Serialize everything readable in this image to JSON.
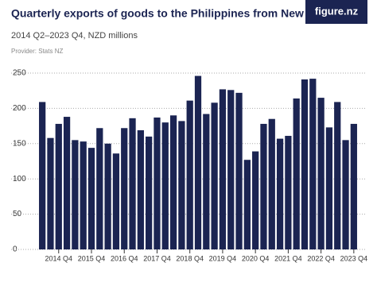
{
  "chart_data": {
    "type": "bar",
    "title": "Quarterly exports of goods to the Philippines from New Zealand",
    "subtitle": "2014 Q2–2023 Q4, NZD millions",
    "provider": "Provider: Stats NZ",
    "logo": "figure.nz",
    "categories": [
      null,
      null,
      "2014 Q4",
      null,
      null,
      null,
      "2015 Q4",
      null,
      null,
      null,
      "2016 Q4",
      null,
      null,
      null,
      "2017 Q4",
      null,
      null,
      null,
      "2018 Q4",
      null,
      null,
      null,
      "2019 Q4",
      null,
      null,
      null,
      "2020 Q4",
      null,
      null,
      null,
      "2021 Q4",
      null,
      null,
      null,
      "2022 Q4",
      null,
      null,
      null,
      "2023 Q4"
    ],
    "values": [
      209,
      158,
      178,
      188,
      155,
      153,
      144,
      172,
      150,
      136,
      172,
      186,
      169,
      160,
      187,
      180,
      190,
      182,
      211,
      246,
      192,
      208,
      227,
      226,
      222,
      127,
      139,
      178,
      185,
      157,
      161,
      214,
      241,
      242,
      215,
      173,
      209,
      155,
      178
    ],
    "color": "#1b2452",
    "ylim": [
      0,
      250
    ],
    "yticks": [
      0,
      50,
      100,
      150,
      200,
      250
    ],
    "grid": true
  }
}
